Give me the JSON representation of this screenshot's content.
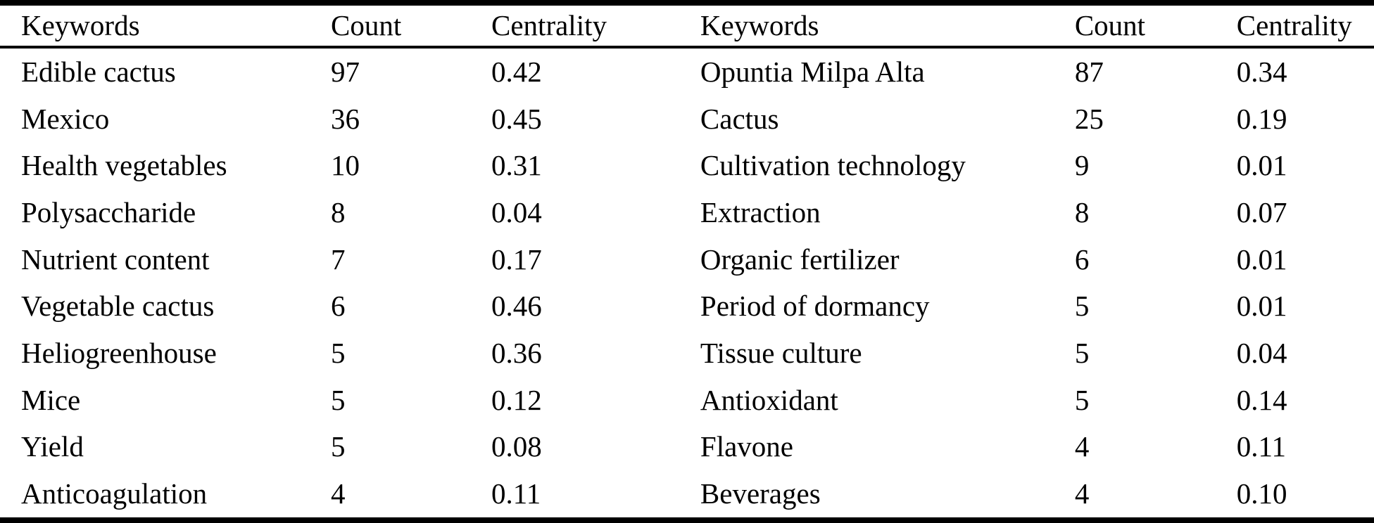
{
  "table": {
    "header_left": {
      "keywords": "Keywords",
      "count": "Count",
      "centrality": "Centrality"
    },
    "header_right": {
      "keywords": "Keywords",
      "count": "Count",
      "centrality": "Centrality"
    },
    "rows": [
      {
        "left": {
          "keyword": "Edible cactus",
          "count": "97",
          "centrality": "0.42"
        },
        "right": {
          "keyword": "Opuntia Milpa Alta",
          "count": "87",
          "centrality": "0.34"
        }
      },
      {
        "left": {
          "keyword": "Mexico",
          "count": "36",
          "centrality": "0.45"
        },
        "right": {
          "keyword": "Cactus",
          "count": "25",
          "centrality": "0.19"
        }
      },
      {
        "left": {
          "keyword": "Health vegetables",
          "count": "10",
          "centrality": "0.31"
        },
        "right": {
          "keyword": "Cultivation technology",
          "count": "9",
          "centrality": "0.01"
        }
      },
      {
        "left": {
          "keyword": "Polysaccharide",
          "count": "8",
          "centrality": "0.04"
        },
        "right": {
          "keyword": "Extraction",
          "count": "8",
          "centrality": "0.07"
        }
      },
      {
        "left": {
          "keyword": "Nutrient content",
          "count": "7",
          "centrality": "0.17"
        },
        "right": {
          "keyword": "Organic fertilizer",
          "count": "6",
          "centrality": "0.01"
        }
      },
      {
        "left": {
          "keyword": "Vegetable cactus",
          "count": "6",
          "centrality": "0.46"
        },
        "right": {
          "keyword": "Period of dormancy",
          "count": "5",
          "centrality": "0.01"
        }
      },
      {
        "left": {
          "keyword": "Heliogreenhouse",
          "count": "5",
          "centrality": "0.36"
        },
        "right": {
          "keyword": "Tissue culture",
          "count": "5",
          "centrality": "0.04"
        }
      },
      {
        "left": {
          "keyword": "Mice",
          "count": "5",
          "centrality": "0.12"
        },
        "right": {
          "keyword": "Antioxidant",
          "count": "5",
          "centrality": "0.14"
        }
      },
      {
        "left": {
          "keyword": "Yield",
          "count": "5",
          "centrality": "0.08"
        },
        "right": {
          "keyword": "Flavone",
          "count": "4",
          "centrality": "0.11"
        }
      },
      {
        "left": {
          "keyword": "Anticoagulation",
          "count": "4",
          "centrality": "0.11"
        },
        "right": {
          "keyword": "Beverages",
          "count": "4",
          "centrality": "0.10"
        }
      }
    ]
  },
  "colors": {
    "text": "#000000",
    "background": "#ffffff",
    "rule": "#000000"
  }
}
